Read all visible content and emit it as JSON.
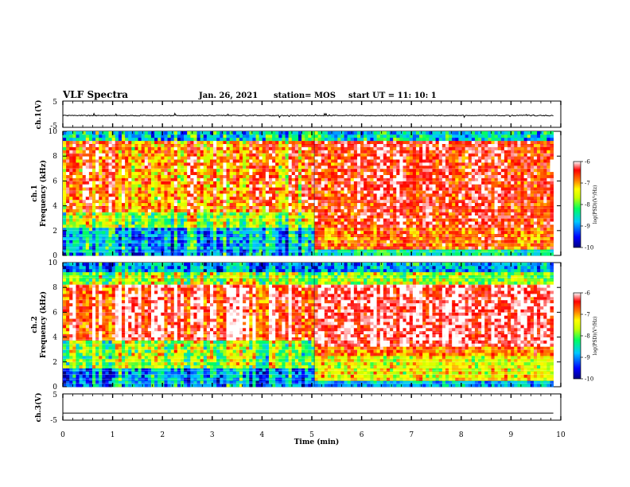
{
  "header": {
    "title": "VLF Spectra",
    "date": "Jan. 26, 2021",
    "station": "station= MOS",
    "start": "start  UT =    11: 10: 1"
  },
  "chart_data": [
    {
      "type": "line",
      "panel": "ch1-waveform",
      "ylabel": "ch.1(V)",
      "ylim": [
        -5,
        5
      ],
      "yticks": [
        "5",
        "-5"
      ],
      "xlim": [
        0,
        10
      ],
      "baseline_v": -0.5,
      "color": "#000000"
    },
    {
      "type": "heatmap",
      "panel": "ch1-spectrogram",
      "ylabel": "ch.1\nFrequency (kHz)",
      "ylim": [
        0,
        10
      ],
      "yticks": [
        "0",
        "2",
        "4",
        "6",
        "8",
        "10"
      ],
      "xlim": [
        0,
        9.85
      ],
      "change_time_min": 5.05,
      "colorbar": {
        "label": "log(PSD)(V²/Hz)",
        "range": [
          -10,
          -6
        ],
        "ticks": [
          "-6",
          "-7",
          "-8",
          "-9",
          "-10"
        ]
      }
    },
    {
      "type": "heatmap",
      "panel": "ch2-spectrogram",
      "ylabel": "ch.2\nFrequency (kHz)",
      "ylim": [
        0,
        10
      ],
      "yticks": [
        "0",
        "2",
        "4",
        "6",
        "8",
        "10"
      ],
      "xlim": [
        0,
        9.85
      ],
      "change_time_min": 5.05,
      "colorbar": {
        "label": "log(PSD)(V²/Hz)",
        "range": [
          -10,
          -6
        ],
        "ticks": [
          "-6",
          "-7",
          "-8",
          "-9",
          "-10"
        ]
      }
    },
    {
      "type": "line",
      "panel": "ch3-waveform",
      "ylabel": "ch.3(V)",
      "ylim": [
        -5,
        5
      ],
      "yticks": [
        "5",
        "-5"
      ],
      "xlim": [
        0,
        10
      ],
      "baseline_v": -2.3,
      "color": "#000000"
    }
  ],
  "xaxis": {
    "label": "Time  (min)",
    "ticks": [
      "0",
      "1",
      "2",
      "3",
      "4",
      "5",
      "6",
      "7",
      "8",
      "9",
      "10"
    ]
  }
}
